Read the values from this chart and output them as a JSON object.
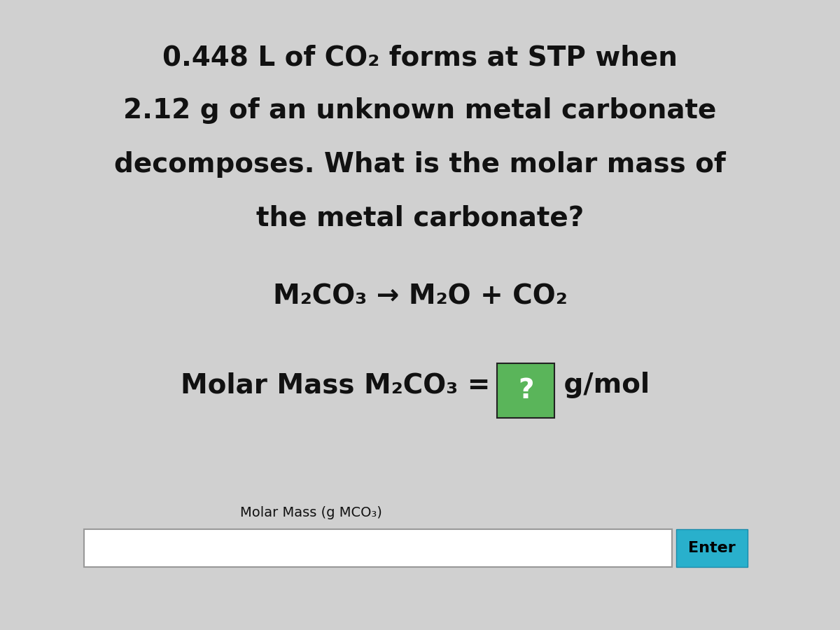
{
  "background_color": "#d0d0d0",
  "title_lines": [
    "0.448 L of CO₂ forms at STP when",
    "2.12 g of an unknown metal carbonate",
    "decomposes. What is the molar mass of",
    "the metal carbonate?"
  ],
  "equation": "M₂CO₃ → M₂O + CO₂",
  "molar_mass_prefix": "Molar Mass M₂CO₃ = ",
  "molar_mass_suffix": " g/mol",
  "answer_box_text": "?",
  "input_label": "Molar Mass (g MCO₃)",
  "enter_button_text": "Enter",
  "enter_button_color": "#29b0cc",
  "answer_box_color": "#5ab55a",
  "text_color": "#111111",
  "title_fontsize": 28,
  "equation_fontsize": 28,
  "molar_mass_fontsize": 28,
  "input_label_fontsize": 14,
  "enter_button_fontsize": 16,
  "fig_width": 12.0,
  "fig_height": 9.0,
  "dpi": 100
}
